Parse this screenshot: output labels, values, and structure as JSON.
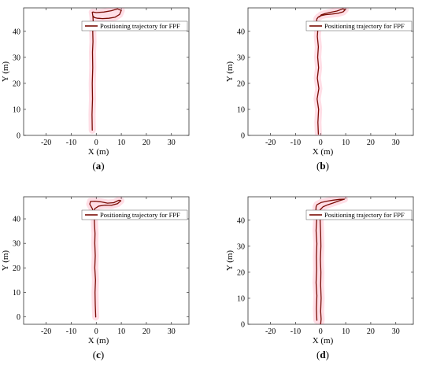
{
  "colors": {
    "trajectory": "#7a0c05",
    "band": "#ff6a8e",
    "axis": "#333333"
  },
  "chart_data": [
    {
      "type": "line",
      "caption": "(a)",
      "caption_prefix": "(",
      "caption_letter": "a",
      "caption_suffix": ")",
      "xlabel": "X (m)",
      "ylabel": "Y (m)",
      "xlim": [
        -29,
        37
      ],
      "ylim": [
        0,
        49
      ],
      "xticks": [
        "-20",
        "-10",
        "0",
        "10",
        "20",
        "30"
      ],
      "yticks": [
        "0",
        "10",
        "20",
        "30",
        "40"
      ],
      "legend_placement": "top-right",
      "series": [
        {
          "name": "Positioning trajectory for FPF",
          "x": [
            -1.6,
            -1.7,
            -1.5,
            -1.6,
            -1.4,
            -1.5,
            -1.3,
            -1.4,
            -1.2,
            -1.3,
            -1.5,
            -1.6,
            -1.3,
            0,
            3,
            6,
            8.5,
            10,
            9.3,
            7.5,
            5,
            2.5,
            0.5,
            -0.8,
            -1.2
          ],
          "y": [
            2,
            8,
            14,
            20,
            26,
            32,
            36,
            40,
            43,
            45.5,
            46.8,
            47.3,
            47.4,
            47.2,
            47.4,
            47.9,
            48.6,
            48.0,
            46.5,
            45.4,
            45.0,
            44.9,
            45.0,
            45.3,
            45.8
          ]
        }
      ]
    },
    {
      "type": "line",
      "caption": "(b)",
      "caption_prefix": "(",
      "caption_letter": "b",
      "caption_suffix": ")",
      "xlabel": "X (m)",
      "ylabel": "Y (m)",
      "xlim": [
        -29,
        37
      ],
      "ylim": [
        0,
        49
      ],
      "xticks": [
        "-20",
        "-10",
        "0",
        "10",
        "20",
        "30"
      ],
      "yticks": [
        "0",
        "10",
        "20",
        "30",
        "40"
      ],
      "legend_placement": "top-right",
      "series": [
        {
          "name": "Positioning trajectory for FPF",
          "x": [
            -0.9,
            -1.1,
            -0.8,
            -1.4,
            -0.7,
            -1.3,
            -0.8,
            -1.2,
            -0.9,
            -1.3,
            -1.1,
            -1.6,
            -1.5,
            -0.9,
            0.2,
            2,
            4.5,
            7,
            9,
            9.8,
            8.8,
            6.5,
            4,
            1.8,
            0.2,
            -0.5
          ],
          "y": [
            0.5,
            5,
            10,
            14,
            18,
            22,
            26,
            30,
            34,
            38,
            41,
            43.5,
            44.8,
            45.5,
            46,
            46.4,
            46.6,
            46.9,
            47.5,
            48.3,
            48.6,
            47.8,
            47.3,
            46.8,
            46.3,
            45.5
          ]
        }
      ]
    },
    {
      "type": "line",
      "caption": "(c)",
      "caption_prefix": "(",
      "caption_letter": "c",
      "caption_suffix": ")",
      "xlabel": "X (m)",
      "ylabel": "Y (m)",
      "xlim": [
        -29,
        37
      ],
      "ylim": [
        -3,
        49
      ],
      "xticks": [
        "-20",
        "-10",
        "0",
        "10",
        "20",
        "30"
      ],
      "yticks": [
        "0",
        "10",
        "20",
        "30",
        "40"
      ],
      "legend_placement": "top-right",
      "series": [
        {
          "name": "Positioning trajectory for FPF",
          "x": [
            -0.2,
            -0.4,
            -0.5,
            -0.3,
            -0.6,
            -0.4,
            -0.6,
            -0.5,
            -0.7,
            -0.8,
            -1.5,
            -2.6,
            -2.3,
            -0.5,
            2,
            4.5,
            7,
            9,
            9.8,
            8.5,
            6,
            3.5,
            1,
            -0.6,
            -0.8
          ],
          "y": [
            0,
            5,
            10,
            15,
            20,
            25,
            30,
            34,
            38,
            41,
            44,
            46,
            47.1,
            47.2,
            46.9,
            46.4,
            46.6,
            47.6,
            47.4,
            46.2,
            45.5,
            45.6,
            45.2,
            44.2,
            43
          ]
        }
      ]
    },
    {
      "type": "line",
      "caption": "(d)",
      "caption_prefix": "(",
      "caption_letter": "d",
      "caption_suffix": ")",
      "xlabel": "X (m)",
      "ylabel": "Y (m)",
      "xlim": [
        -29,
        37
      ],
      "ylim": [
        0,
        49
      ],
      "xticks": [
        "-20",
        "-10",
        "0",
        "10",
        "20",
        "30"
      ],
      "yticks": [
        "0",
        "10",
        "20",
        "30",
        "40"
      ],
      "legend_placement": "top-right",
      "series": [
        {
          "name": "Positioning trajectory for FPF",
          "x": [
            -1.5,
            -1.7,
            -1.5,
            -1.8,
            -1.6,
            -1.7,
            -1.5,
            -1.8,
            -1.6,
            -1.9,
            -1.8,
            -1.4,
            0.2,
            2.5,
            5,
            7.5,
            9.5,
            7.5,
            5,
            2.8,
            1,
            -0.2,
            -0.2,
            0,
            0.1,
            -0.1,
            0.1,
            0,
            0.2,
            0,
            0.2,
            0
          ],
          "y": [
            1.5,
            6,
            11,
            16,
            21,
            26,
            31,
            36,
            40,
            43.5,
            45.2,
            46,
            46.8,
            47.3,
            47.7,
            48,
            48.1,
            47.5,
            46.6,
            45.9,
            45.2,
            44,
            40,
            35,
            30,
            25,
            20,
            15,
            10,
            5,
            2,
            0
          ]
        }
      ]
    }
  ]
}
